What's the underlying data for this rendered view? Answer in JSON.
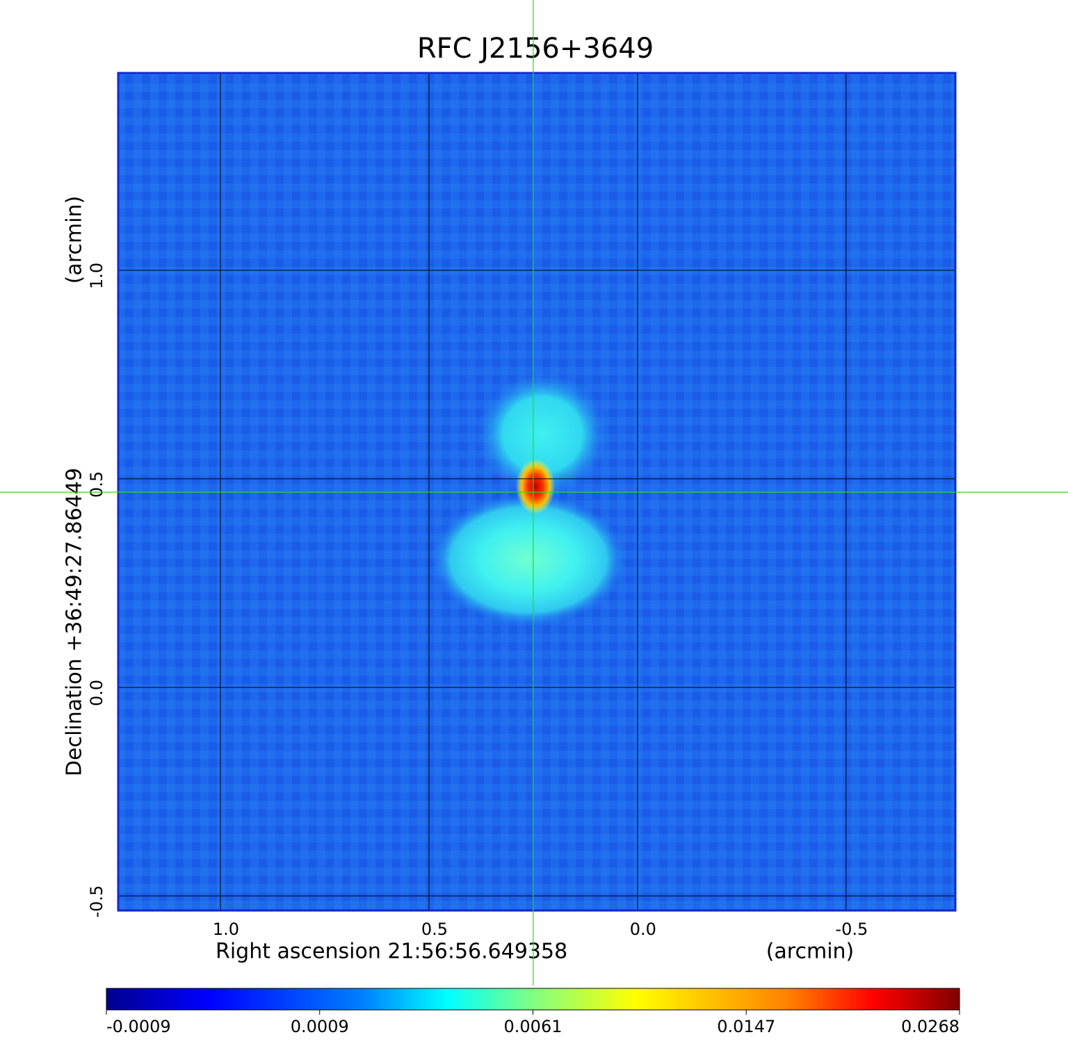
{
  "chart_data": {
    "type": "image",
    "title": "RFC J2156+3649",
    "title_color": "#1414d2",
    "x_label": "Right ascension  21:56:56.649358",
    "x_unit": "(arcmin)",
    "y_label": "Declination  +36:49:27.86449",
    "y_unit": "(arcmin)",
    "xlim": [
      1.245,
      -0.762
    ],
    "ylim": [
      -0.535,
      1.473
    ],
    "xticks": [
      {
        "value": 1,
        "label": "1.0"
      },
      0.5,
      {
        "value": 0,
        "label": "0.0"
      },
      -0.5
    ],
    "yticks": [
      -0.5,
      {
        "value": 0,
        "label": "0.0"
      },
      0.5,
      {
        "value": 1,
        "label": "1.0"
      }
    ],
    "grid": true,
    "grid_color": "#000000",
    "frame_color": "#1428d2",
    "crosshair": {
      "x": 0.25,
      "y": 0.468,
      "color": "#22dd22"
    },
    "colorbar": {
      "colormap": "jet",
      "ticks": [
        -0.0009,
        0.0009,
        0.0061,
        0.0147,
        0.0268
      ]
    }
  }
}
